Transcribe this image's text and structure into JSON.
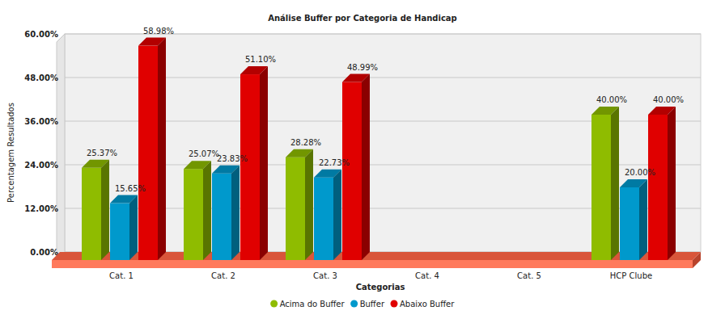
{
  "chart_data": {
    "type": "bar",
    "title": "Análise Buffer por Categoria de Handicap",
    "x_label": "Categorias",
    "y_label": "Percentagem Resultados",
    "categories": [
      "Cat. 1",
      "Cat. 2",
      "Cat. 3",
      "Cat. 4",
      "Cat. 5",
      "HCP Clube"
    ],
    "series": [
      {
        "name": "Acima do Buffer",
        "color": "#8fbc00",
        "values": [
          25.37,
          25.07,
          28.28,
          null,
          null,
          40.0
        ],
        "value_labels": [
          "25.37%",
          "25.07%",
          "28.28%",
          null,
          null,
          "40.00%"
        ]
      },
      {
        "name": "Buffer",
        "color": "#0099cc",
        "values": [
          15.65,
          23.83,
          22.73,
          null,
          null,
          20.0
        ],
        "value_labels": [
          "15.65%",
          "23.83%",
          "22.73%",
          null,
          null,
          "20.00%"
        ]
      },
      {
        "name": "Abaixo Buffer",
        "color": "#e00000",
        "values": [
          58.98,
          51.1,
          48.99,
          null,
          null,
          40.0
        ],
        "value_labels": [
          "58.98%",
          "51.10%",
          "48.99%",
          null,
          null,
          "40.00%"
        ]
      }
    ],
    "ylim": [
      0,
      60
    ],
    "yticks": [
      {
        "value": 0,
        "label": "0.00%"
      },
      {
        "value": 12,
        "label": "12.00%"
      },
      {
        "value": 24,
        "label": "24.00%"
      },
      {
        "value": 36,
        "label": "36.00%"
      },
      {
        "value": 48,
        "label": "48.00%"
      },
      {
        "value": 60,
        "label": "60.00%"
      }
    ],
    "grid": true,
    "data_labels": true,
    "legend": "bottom"
  }
}
